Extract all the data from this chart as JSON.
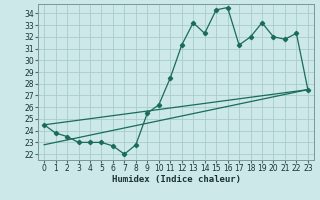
{
  "title": "",
  "xlabel": "Humidex (Indice chaleur)",
  "background_color": "#cce8e8",
  "grid_color": "#aacccc",
  "line_color": "#1a6b5a",
  "xlim": [
    -0.5,
    23.5
  ],
  "ylim": [
    21.5,
    34.8
  ],
  "xtick_labels": [
    "0",
    "1",
    "2",
    "3",
    "4",
    "5",
    "6",
    "7",
    "8",
    "9",
    "10",
    "11",
    "12",
    "13",
    "14",
    "15",
    "16",
    "17",
    "18",
    "19",
    "20",
    "21",
    "22",
    "23"
  ],
  "xticks": [
    0,
    1,
    2,
    3,
    4,
    5,
    6,
    7,
    8,
    9,
    10,
    11,
    12,
    13,
    14,
    15,
    16,
    17,
    18,
    19,
    20,
    21,
    22,
    23
  ],
  "yticks": [
    22,
    23,
    24,
    25,
    26,
    27,
    28,
    29,
    30,
    31,
    32,
    33,
    34
  ],
  "main_x": [
    0,
    1,
    2,
    3,
    4,
    5,
    6,
    7,
    8,
    9,
    10,
    11,
    12,
    13,
    14,
    15,
    16,
    17,
    18,
    19,
    20,
    21,
    22,
    23
  ],
  "main_y": [
    24.5,
    23.8,
    23.5,
    23.0,
    23.0,
    23.0,
    22.7,
    22.0,
    22.8,
    25.5,
    26.2,
    28.5,
    31.3,
    33.2,
    32.3,
    34.3,
    34.5,
    31.3,
    32.0,
    33.2,
    32.0,
    31.8,
    32.3,
    27.5
  ],
  "trend1_x": [
    0,
    23
  ],
  "trend1_y": [
    22.8,
    27.5
  ],
  "trend2_x": [
    0,
    23
  ],
  "trend2_y": [
    24.5,
    27.5
  ]
}
